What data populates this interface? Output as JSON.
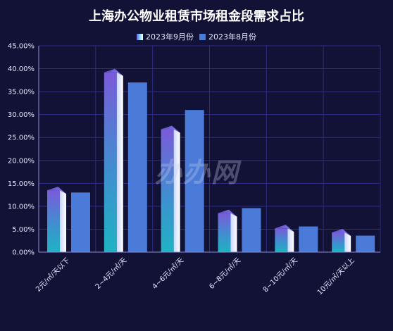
{
  "chart_data": {
    "type": "bar",
    "title": "上海办公物业租赁市场租金段需求占比",
    "categories": [
      "2元/㎡/天以下",
      "2~4元/㎡/天",
      "4~6元/㎡/天",
      "6~8元/㎡/天",
      "8~10元/㎡/天",
      "10元/㎡/天以上"
    ],
    "series": [
      {
        "name": "2023年9月份",
        "values": [
          13.5,
          39.2,
          26.8,
          8.5,
          5.2,
          4.3
        ],
        "color": "#6b5ee0"
      },
      {
        "name": "2023年8月份",
        "values": [
          13.0,
          37.0,
          31.0,
          9.6,
          5.6,
          3.6
        ],
        "color": "#4a7bd8"
      }
    ],
    "ylim": [
      0,
      45
    ],
    "yticks": [
      "0.00%",
      "5.00%",
      "10.00%",
      "15.00%",
      "20.00%",
      "25.00%",
      "30.00%",
      "35.00%",
      "40.00%",
      "45.00%"
    ],
    "xlabel": "",
    "ylabel": "",
    "grid": true,
    "legend_position": "top-center",
    "watermark": "办办网"
  }
}
